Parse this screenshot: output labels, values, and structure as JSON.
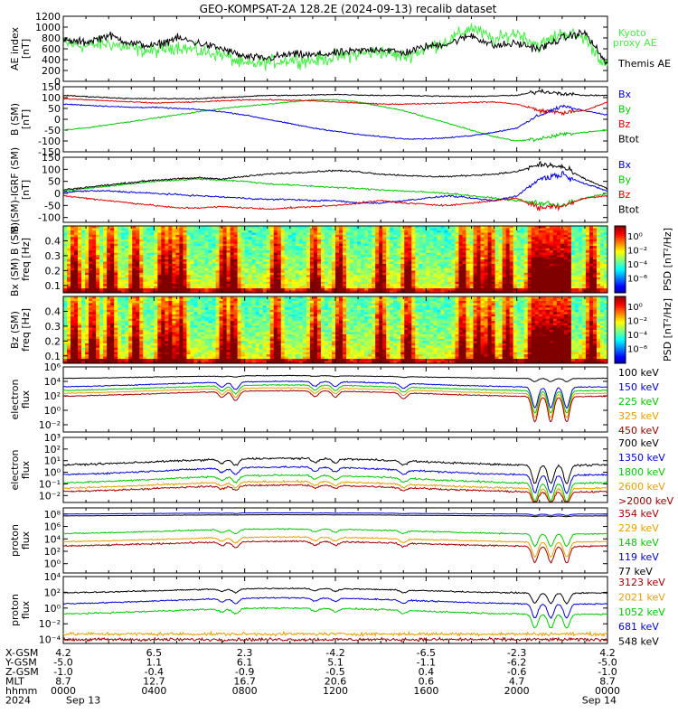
{
  "title": "GEO-KOMPSAT-2A 128.2E (2024-09-13) recalib dataset",
  "colors": {
    "black": "#000000",
    "green": "#00c800",
    "blue": "#0000dc",
    "red": "#dc0000",
    "orange": "#e6a000",
    "darkred": "#a00000",
    "ltgreen": "#44ee44",
    "navy": "#00007a"
  },
  "chart_data": [
    {
      "id": "ae",
      "type": "line",
      "ylabel": "AE index\n[nT]",
      "y_ticks": [
        "1200",
        "1000",
        "800",
        "600",
        "400",
        "200",
        "0"
      ],
      "ylim": [
        0,
        1200
      ],
      "series": [
        {
          "name": "Kyoto\nproxy AE",
          "color": "#44ee44"
        },
        {
          "name": "Themis AE",
          "color": "#000000"
        }
      ],
      "approx_values_hourly": {
        "themis": [
          750,
          720,
          850,
          700,
          650,
          800,
          700,
          600,
          450,
          420,
          500,
          480,
          520,
          560,
          600,
          520,
          640,
          700,
          850,
          650,
          700,
          600,
          800,
          900,
          300
        ],
        "kyoto": [
          700,
          650,
          700,
          600,
          550,
          650,
          550,
          500,
          300,
          350,
          400,
          380,
          450,
          500,
          550,
          450,
          600,
          750,
          1000,
          750,
          900,
          650,
          900,
          800,
          250
        ]
      }
    },
    {
      "id": "bsm",
      "type": "line",
      "ylabel": "B (SM)\n[nT]",
      "y_ticks": [
        "150",
        "100",
        "50",
        "0",
        "-50",
        "-100",
        "-150"
      ],
      "ylim": [
        -150,
        150
      ],
      "series": [
        {
          "name": "Bx",
          "color": "#0000dc"
        },
        {
          "name": "By",
          "color": "#00c800"
        },
        {
          "name": "Bz",
          "color": "#dc0000"
        },
        {
          "name": "Btot",
          "color": "#000000"
        }
      ],
      "approx_values_hourly": {
        "Bx": [
          70,
          65,
          60,
          55,
          55,
          50,
          45,
          35,
          20,
          0,
          -20,
          -40,
          -55,
          -70,
          -80,
          -90,
          -90,
          -85,
          -75,
          -60,
          -40,
          20,
          60,
          40,
          20
        ],
        "By": [
          -50,
          -40,
          -25,
          -10,
          5,
          20,
          35,
          50,
          60,
          70,
          80,
          90,
          90,
          80,
          60,
          40,
          10,
          -20,
          -50,
          -80,
          -100,
          -90,
          -70,
          -60,
          -50
        ],
        "Bz": [
          95,
          90,
          85,
          80,
          75,
          78,
          80,
          85,
          90,
          90,
          88,
          85,
          80,
          75,
          70,
          70,
          72,
          75,
          78,
          80,
          70,
          40,
          30,
          40,
          80
        ],
        "Btot": [
          110,
          105,
          100,
          95,
          95,
          95,
          95,
          100,
          105,
          110,
          110,
          112,
          115,
          112,
          110,
          110,
          108,
          106,
          105,
          108,
          110,
          130,
          120,
          110,
          110
        ]
      }
    },
    {
      "id": "bigrf",
      "type": "line",
      "ylabel": "B (SM)-IGRF (SM)\n[nT]",
      "y_ticks": [
        "150",
        "100",
        "50",
        "0",
        "-50",
        "-100"
      ],
      "ylim": [
        -120,
        150
      ],
      "series": [
        {
          "name": "Bx",
          "color": "#0000dc"
        },
        {
          "name": "By",
          "color": "#00c800"
        },
        {
          "name": "Bz",
          "color": "#dc0000"
        },
        {
          "name": "Btot",
          "color": "#000000"
        }
      ],
      "approx_values_hourly": {
        "Bx": [
          5,
          10,
          10,
          5,
          0,
          -5,
          -10,
          -15,
          -20,
          -25,
          -25,
          -30,
          -30,
          -40,
          -40,
          -30,
          -20,
          -10,
          -20,
          -30,
          -10,
          60,
          80,
          40,
          10
        ],
        "By": [
          10,
          20,
          30,
          40,
          50,
          55,
          60,
          55,
          50,
          40,
          35,
          30,
          25,
          20,
          15,
          10,
          5,
          0,
          -10,
          -20,
          -30,
          -40,
          -50,
          -20,
          0
        ],
        "Bz": [
          -10,
          -20,
          -30,
          -40,
          -50,
          -60,
          -60,
          -55,
          -60,
          -65,
          -60,
          -55,
          -50,
          -40,
          -30,
          -40,
          -45,
          -50,
          -40,
          -30,
          -20,
          -60,
          -50,
          -20,
          -10
        ],
        "Btot": [
          15,
          25,
          35,
          45,
          55,
          60,
          65,
          60,
          70,
          80,
          85,
          90,
          95,
          90,
          80,
          75,
          70,
          70,
          75,
          80,
          90,
          120,
          110,
          60,
          20
        ]
      }
    },
    {
      "id": "specbx",
      "type": "heatmap",
      "ylabel": "Bx (SM) B (SM)\nfreq [Hz]",
      "y_ticks": [
        "0.4",
        "0.3",
        "0.2",
        "0.1"
      ],
      "ylim": [
        0.05,
        0.5
      ],
      "colorbar_label": "PSD [nT²/Hz]",
      "colorbar_ticks": [
        "10⁰",
        "10⁻²",
        "10⁻⁴",
        "10⁻⁶"
      ]
    },
    {
      "id": "specbz",
      "type": "heatmap",
      "ylabel": "Bz (SM)\nfreq [Hz]",
      "y_ticks": [
        "0.4",
        "0.3",
        "0.2",
        "0.1"
      ],
      "ylim": [
        0.05,
        0.5
      ],
      "colorbar_label": "PSD [nT²/Hz]",
      "colorbar_ticks": [
        "10⁰",
        "10⁻²",
        "10⁻⁴",
        "10⁻⁶"
      ]
    },
    {
      "id": "eflux1",
      "type": "line",
      "log": true,
      "ylabel": "electron\nflux",
      "y_ticks": [
        "10⁶",
        "10⁴",
        "10²",
        "10⁰",
        "10⁻²"
      ],
      "ylim_log": [
        -3,
        6
      ],
      "series": [
        {
          "name": "100 keV",
          "color": "#000000"
        },
        {
          "name": "150 keV",
          "color": "#0000dc"
        },
        {
          "name": "225 keV",
          "color": "#00c800"
        },
        {
          "name": "325 keV",
          "color": "#e6a000"
        },
        {
          "name": "450 keV",
          "color": "#a00000"
        }
      ]
    },
    {
      "id": "eflux2",
      "type": "line",
      "log": true,
      "ylabel": "electron\nflux",
      "y_ticks": [
        "10³",
        "10²",
        "10¹",
        "10⁰",
        "10⁻¹",
        "10⁻²"
      ],
      "ylim_log": [
        -2.6,
        3
      ],
      "series": [
        {
          "name": "700 keV",
          "color": "#000000"
        },
        {
          "name": "1350 keV",
          "color": "#0000dc"
        },
        {
          "name": "1800 keV",
          "color": "#00c800"
        },
        {
          "name": "2600 keV",
          "color": "#e6a000"
        },
        {
          "name": ">2000 keV",
          "color": "#a00000"
        }
      ]
    },
    {
      "id": "pflux1",
      "type": "line",
      "log": true,
      "ylabel": "proton\nflux",
      "y_ticks": [
        "10⁸",
        "10⁶",
        "10⁴",
        "10²",
        "10⁰"
      ],
      "ylim_log": [
        -1.5,
        9
      ],
      "series": [
        {
          "name": "354 keV",
          "color": "#a00000"
        },
        {
          "name": "229 keV",
          "color": "#e6a000"
        },
        {
          "name": "148 keV",
          "color": "#00c800"
        },
        {
          "name": "119 keV",
          "color": "#0000dc"
        },
        {
          "name": "77 keV",
          "color": "#000000"
        }
      ]
    },
    {
      "id": "pflux2",
      "type": "line",
      "log": true,
      "ylabel": "proton\nflux",
      "y_ticks": [
        "10⁴",
        "10²",
        "10⁰",
        "10⁻²",
        "10⁻⁴"
      ],
      "ylim_log": [
        -4.5,
        4
      ],
      "series": [
        {
          "name": "3123 keV",
          "color": "#a00000"
        },
        {
          "name": "2021 keV",
          "color": "#e6a000"
        },
        {
          "name": "1052 keV",
          "color": "#00c800"
        },
        {
          "name": "681 keV",
          "color": "#0000dc"
        },
        {
          "name": "548 keV",
          "color": "#000000"
        }
      ]
    }
  ],
  "ephemeris": {
    "row_labels": [
      "X-GSM",
      "Y-GSM",
      "Z-GSM",
      "MLT",
      "hhmm",
      "2024"
    ],
    "columns": [
      [
        "4.2",
        "-5.0",
        "-1.0",
        "8.7",
        "0000",
        "Sep 13"
      ],
      [
        "6.5",
        "1.1",
        "-0.4",
        "12.7",
        "0400",
        ""
      ],
      [
        "2.3",
        "6.1",
        "-0.9",
        "16.7",
        "0800",
        ""
      ],
      [
        "-4.2",
        "5.1",
        "-0.5",
        "20.6",
        "1200",
        ""
      ],
      [
        "-6.5",
        "-1.1",
        "0.4",
        "0.6",
        "1600",
        ""
      ],
      [
        "-2.3",
        "-6.2",
        "-0.6",
        "4.7",
        "2000",
        ""
      ],
      [
        "4.2",
        "-5.0",
        "-1.0",
        "8.7",
        "0000",
        "Sep 14"
      ]
    ]
  }
}
